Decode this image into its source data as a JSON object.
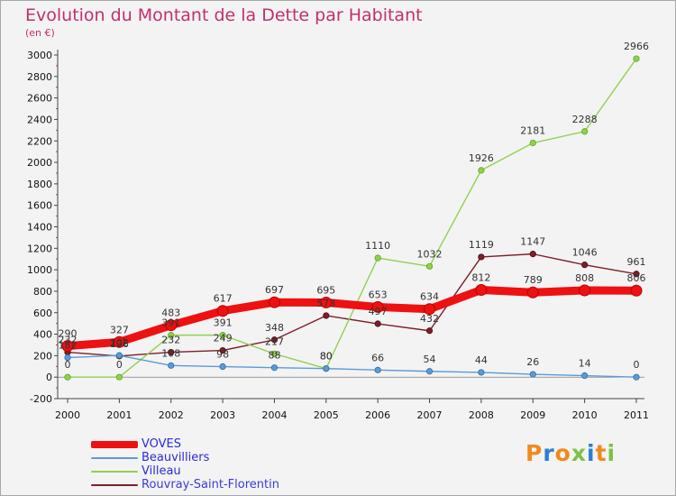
{
  "title": "Evolution du Montant de la Dette par Habitant",
  "unit": "(en €)",
  "logo_text": "Proxiti",
  "chart_data": {
    "type": "line",
    "title": "Evolution du Montant de la Dette par Habitant",
    "subtitle": "(en €)",
    "x": [
      "2000",
      "2001",
      "2002",
      "2003",
      "2004",
      "2005",
      "2006",
      "2007",
      "2008",
      "2009",
      "2010",
      "2011"
    ],
    "ylim": [
      -200,
      3000
    ],
    "yticks": [
      -200,
      0,
      200,
      400,
      600,
      800,
      1000,
      1200,
      1400,
      1600,
      1800,
      2000,
      2200,
      2400,
      2600,
      2800,
      3000
    ],
    "grid": false,
    "legend_position": "bottom-left",
    "series": [
      {
        "name": "VOVES",
        "color": "#ee1111",
        "values": [
          290,
          327,
          483,
          617,
          697,
          695,
          653,
          634,
          812,
          789,
          808,
          806
        ]
      },
      {
        "name": "Beauvilliers",
        "color": "#5b9bd5",
        "values": [
          182,
          202,
          108,
          98,
          88,
          80,
          66,
          54,
          44,
          26,
          14,
          0
        ]
      },
      {
        "name": "Villeau",
        "color": "#92d050",
        "values": [
          0,
          0,
          391,
          391,
          217,
          80,
          1110,
          1032,
          1926,
          2181,
          2288,
          2966
        ]
      },
      {
        "name": "Rouvray-Saint-Florentin",
        "color": "#7b1f2a",
        "values": [
          232,
          196,
          232,
          249,
          348,
          573,
          497,
          432,
          1119,
          1147,
          1046,
          961
        ]
      }
    ],
    "data_labels": {
      "VOVES": [
        "290",
        "327",
        "483",
        "617",
        "697",
        "695",
        "653",
        "634",
        "812",
        "789",
        "808",
        "806"
      ],
      "Beauvilliers": [
        "182",
        "202",
        "108",
        "98",
        "88",
        "80",
        "66",
        "54",
        "44",
        "26",
        "14",
        "0"
      ],
      "Villeau": [
        "0",
        "0",
        "391",
        "391",
        "217",
        "80",
        "1110",
        "1032",
        "1926",
        "2181",
        "2288",
        "2966"
      ],
      "Rouvray-Saint-Florentin": [
        "232",
        "196",
        "232",
        "249",
        "348",
        "573",
        "497",
        "432",
        "1119",
        "1147",
        "1046",
        "961"
      ]
    }
  }
}
